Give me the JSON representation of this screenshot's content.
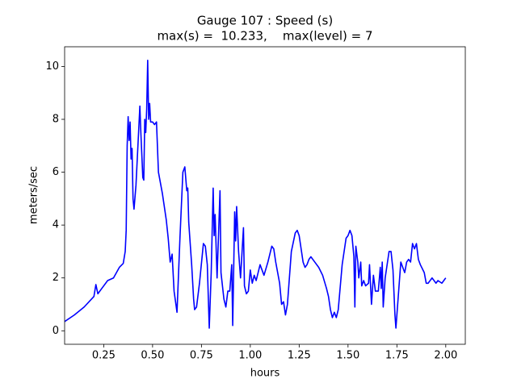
{
  "chart_data": {
    "type": "line",
    "title": "Gauge 107 : Speed (s)",
    "subtitle": "max(s) =  10.233,    max(level) = 7",
    "xlabel": "hours",
    "ylabel": "meters/sec",
    "xlim": [
      0.05,
      2.1
    ],
    "ylim": [
      -0.51,
      10.745
    ],
    "xticks": [
      0.25,
      {
        "value": 0.5,
        "label": "0.50"
      },
      0.75,
      {
        "value": 1,
        "label": "1.00"
      },
      1.25,
      {
        "value": 1.5,
        "label": "1.50"
      },
      1.75,
      {
        "value": 2,
        "label": "2.00"
      }
    ],
    "yticks": [
      0,
      2,
      4,
      6,
      8,
      10
    ],
    "series": [
      {
        "color": "#0000ff",
        "x": [
          0.05,
          0.1,
          0.15,
          0.2,
          0.21,
          0.22,
          0.24,
          0.27,
          0.3,
          0.33,
          0.35,
          0.36,
          0.365,
          0.37,
          0.375,
          0.38,
          0.385,
          0.39,
          0.395,
          0.4,
          0.405,
          0.415,
          0.425,
          0.435,
          0.44,
          0.45,
          0.455,
          0.46,
          0.465,
          0.47,
          0.475,
          0.48,
          0.485,
          0.49,
          0.5,
          0.51,
          0.52,
          0.53,
          0.55,
          0.57,
          0.58,
          0.59,
          0.6,
          0.61,
          0.625,
          0.64,
          0.655,
          0.665,
          0.675,
          0.68,
          0.685,
          0.7,
          0.71,
          0.715,
          0.725,
          0.74,
          0.76,
          0.77,
          0.78,
          0.79,
          0.8,
          0.81,
          0.815,
          0.82,
          0.83,
          0.845,
          0.85,
          0.865,
          0.875,
          0.885,
          0.895,
          0.905,
          0.91,
          0.92,
          0.925,
          0.93,
          0.94,
          0.95,
          0.965,
          0.97,
          0.98,
          0.99,
          1.0,
          1.01,
          1.02,
          1.03,
          1.05,
          1.07,
          1.09,
          1.11,
          1.12,
          1.13,
          1.15,
          1.16,
          1.17,
          1.18,
          1.19,
          1.21,
          1.23,
          1.24,
          1.25,
          1.27,
          1.28,
          1.29,
          1.3,
          1.31,
          1.33,
          1.35,
          1.37,
          1.39,
          1.4,
          1.41,
          1.42,
          1.43,
          1.44,
          1.45,
          1.47,
          1.49,
          1.5,
          1.51,
          1.52,
          1.53,
          1.535,
          1.54,
          1.55,
          1.555,
          1.565,
          1.57,
          1.58,
          1.59,
          1.605,
          1.61,
          1.62,
          1.63,
          1.64,
          1.655,
          1.665,
          1.67,
          1.675,
          1.68,
          1.69,
          1.7,
          1.71,
          1.72,
          1.73,
          1.74,
          1.745,
          1.76,
          1.77,
          1.78,
          1.79,
          1.8,
          1.81,
          1.82,
          1.83,
          1.84,
          1.85,
          1.86,
          1.87,
          1.89,
          1.9,
          1.91,
          1.93,
          1.95,
          1.96,
          1.98,
          1.99,
          2.0
        ],
        "values": [
          0.35,
          0.6,
          0.9,
          1.3,
          1.75,
          1.4,
          1.6,
          1.9,
          2.0,
          2.4,
          2.55,
          3.0,
          3.8,
          7.0,
          8.1,
          7.2,
          7.9,
          6.5,
          6.9,
          5.0,
          4.6,
          5.5,
          7.0,
          8.5,
          7.5,
          5.8,
          5.7,
          8.0,
          7.5,
          8.4,
          10.233,
          8.0,
          8.6,
          7.9,
          7.9,
          7.8,
          7.9,
          6.0,
          5.2,
          4.2,
          3.5,
          2.6,
          2.9,
          1.5,
          0.7,
          3.5,
          6.0,
          6.2,
          5.3,
          5.4,
          4.1,
          2.5,
          1.2,
          0.8,
          0.9,
          1.8,
          3.3,
          3.2,
          2.5,
          0.1,
          2.2,
          5.4,
          3.6,
          4.4,
          2.0,
          5.3,
          2.2,
          1.2,
          0.9,
          1.5,
          1.5,
          2.5,
          0.2,
          4.5,
          3.4,
          4.7,
          3.0,
          2.0,
          3.9,
          1.7,
          1.4,
          1.5,
          2.3,
          1.8,
          2.1,
          1.9,
          2.5,
          2.1,
          2.6,
          3.2,
          3.1,
          2.6,
          1.8,
          1.0,
          1.1,
          0.6,
          1.0,
          3.0,
          3.7,
          3.8,
          3.6,
          2.6,
          2.4,
          2.5,
          2.7,
          2.8,
          2.6,
          2.4,
          2.1,
          1.6,
          1.3,
          0.8,
          0.5,
          0.7,
          0.5,
          0.8,
          2.5,
          3.5,
          3.6,
          3.8,
          3.6,
          2.8,
          0.9,
          3.2,
          2.6,
          2.0,
          2.6,
          1.7,
          1.9,
          1.7,
          1.8,
          2.5,
          1.0,
          2.1,
          1.5,
          1.5,
          2.4,
          1.6,
          2.6,
          0.9,
          2.0,
          2.5,
          3.0,
          3.0,
          2.3,
          0.6,
          0.1,
          1.6,
          2.6,
          2.4,
          2.2,
          2.6,
          2.7,
          2.6,
          3.3,
          3.1,
          3.3,
          2.7,
          2.5,
          2.2,
          1.8,
          1.8,
          2.0,
          1.8,
          1.9,
          1.8,
          1.9,
          2.0
        ]
      }
    ]
  }
}
